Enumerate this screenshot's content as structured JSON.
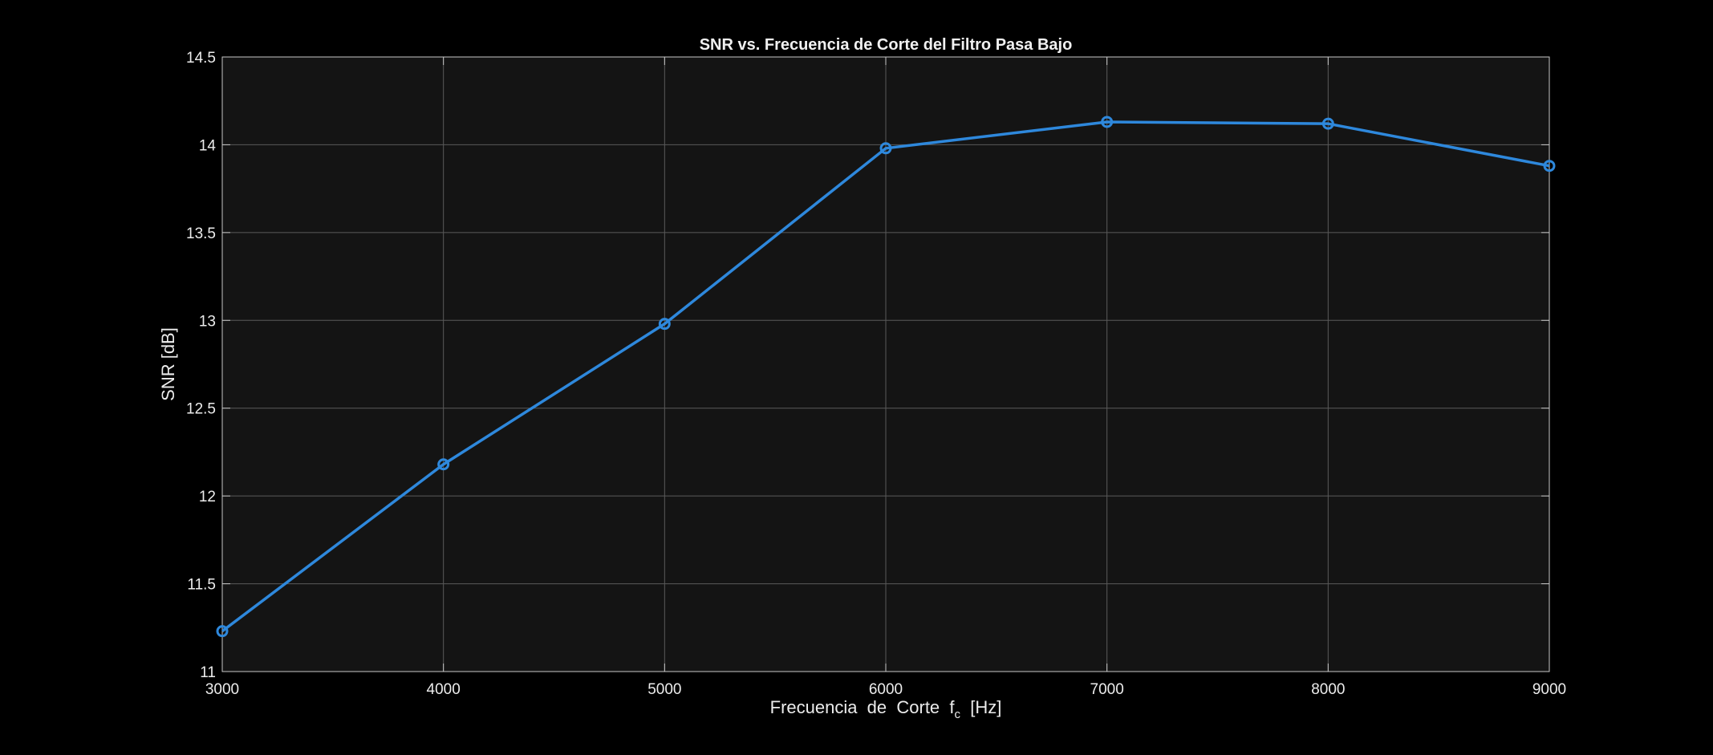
{
  "chart_data": {
    "type": "line",
    "title": "SNR vs. Frecuencia de Corte del Filtro Pasa Bajo",
    "xlabel": {
      "prefix": "Frecuencia  de  Corte  f",
      "subscript": "c",
      "suffix": "  [Hz]"
    },
    "ylabel": "SNR [dB]",
    "xlim": [
      3000,
      9000
    ],
    "ylim": [
      11,
      14.5
    ],
    "x_ticks": [
      3000,
      4000,
      5000,
      6000,
      7000,
      8000,
      9000
    ],
    "y_ticks": [
      11,
      11.5,
      12,
      12.5,
      13,
      13.5,
      14,
      14.5
    ],
    "x_tick_labels": [
      "3000",
      "4000",
      "5000",
      "6000",
      "7000",
      "8000",
      "9000"
    ],
    "y_tick_labels": [
      "11",
      "11.5",
      "12",
      "12.5",
      "13",
      "13.5",
      "14",
      "14.5"
    ],
    "grid": true,
    "marker": "circle",
    "series": [
      {
        "color": "#2e88dc",
        "x": [
          3000,
          4000,
          5000,
          6000,
          7000,
          8000,
          9000
        ],
        "y": [
          11.23,
          12.18,
          12.98,
          13.98,
          14.13,
          14.12,
          13.88
        ]
      }
    ]
  },
  "colors": {
    "figure_background": "#000000",
    "axes_background": "#141414",
    "grid": "#5a5a5a",
    "axes_border": "#c8c8c8",
    "text": "#ececec"
  }
}
